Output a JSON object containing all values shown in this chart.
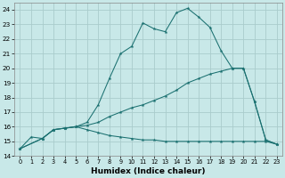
{
  "xlabel": "Humidex (Indice chaleur)",
  "background_color": "#c8e8e8",
  "grid_color": "#aacccc",
  "line_color": "#1a7070",
  "xlim": [
    -0.5,
    23.5
  ],
  "ylim": [
    14,
    24.5
  ],
  "yticks": [
    14,
    15,
    16,
    17,
    18,
    19,
    20,
    21,
    22,
    23,
    24
  ],
  "xticks": [
    0,
    1,
    2,
    3,
    4,
    5,
    6,
    7,
    8,
    9,
    10,
    11,
    12,
    13,
    14,
    15,
    16,
    17,
    18,
    19,
    20,
    21,
    22,
    23
  ],
  "series": [
    {
      "x": [
        0,
        1,
        2,
        3,
        4,
        5,
        6,
        7,
        8,
        9,
        10,
        11,
        12,
        13,
        14,
        15,
        16,
        17,
        18,
        19,
        20,
        21,
        22,
        23
      ],
      "y": [
        14.5,
        15.3,
        15.2,
        15.8,
        15.9,
        16.0,
        16.3,
        17.5,
        19.3,
        21.0,
        21.5,
        23.1,
        22.7,
        22.5,
        23.8,
        24.1,
        23.5,
        22.8,
        21.2,
        20.0,
        20.0,
        17.7,
        15.1,
        14.8
      ]
    },
    {
      "x": [
        0,
        2,
        3,
        4,
        5,
        6,
        7,
        8,
        9,
        10,
        11,
        12,
        13,
        14,
        15,
        16,
        17,
        18,
        19,
        20,
        21,
        22,
        23
      ],
      "y": [
        14.5,
        15.2,
        15.8,
        15.9,
        16.0,
        16.1,
        16.3,
        16.7,
        17.0,
        17.3,
        17.5,
        17.8,
        18.1,
        18.5,
        19.0,
        19.3,
        19.6,
        19.8,
        20.0,
        20.0,
        17.7,
        15.1,
        14.8
      ]
    },
    {
      "x": [
        0,
        2,
        3,
        4,
        5,
        6,
        7,
        8,
        9,
        10,
        11,
        12,
        13,
        14,
        15,
        16,
        17,
        18,
        19,
        20,
        21,
        22,
        23
      ],
      "y": [
        14.5,
        15.2,
        15.8,
        15.9,
        16.0,
        15.8,
        15.6,
        15.4,
        15.3,
        15.2,
        15.1,
        15.1,
        15.0,
        15.0,
        15.0,
        15.0,
        15.0,
        15.0,
        15.0,
        15.0,
        15.0,
        15.0,
        14.8
      ]
    }
  ]
}
